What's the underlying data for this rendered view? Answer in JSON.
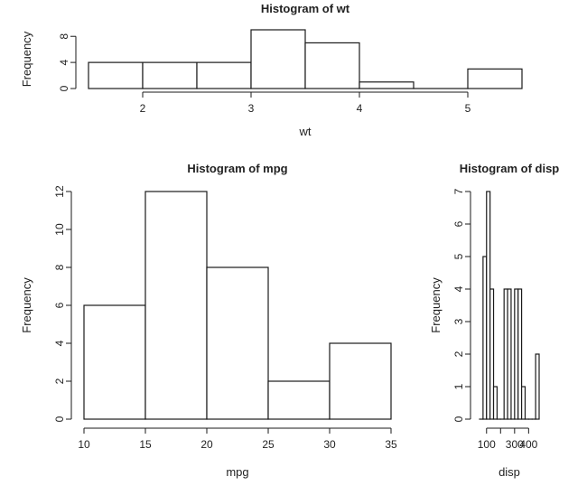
{
  "chart_data": [
    {
      "type": "bar",
      "title": "Histogram of wt",
      "xlabel": "wt",
      "ylabel": "Frequency",
      "bins": [
        [
          1.5,
          2.0
        ],
        [
          2.0,
          2.5
        ],
        [
          2.5,
          3.0
        ],
        [
          3.0,
          3.5
        ],
        [
          3.5,
          4.0
        ],
        [
          4.0,
          4.5
        ],
        [
          4.5,
          5.0
        ],
        [
          5.0,
          5.5
        ]
      ],
      "values": [
        4,
        4,
        4,
        9,
        7,
        1,
        0,
        3
      ],
      "xticks": [
        2,
        3,
        4,
        5
      ],
      "yticks": [
        0,
        4,
        8
      ],
      "xlim": [
        1.5,
        5.5
      ],
      "ylim": [
        0,
        9
      ]
    },
    {
      "type": "bar",
      "title": "Histogram of mpg",
      "xlabel": "mpg",
      "ylabel": "Frequency",
      "bins": [
        [
          10,
          15
        ],
        [
          15,
          20
        ],
        [
          20,
          25
        ],
        [
          25,
          30
        ],
        [
          30,
          35
        ]
      ],
      "values": [
        6,
        12,
        8,
        2,
        4
      ],
      "xticks": [
        10,
        15,
        20,
        25,
        30,
        35
      ],
      "yticks": [
        0,
        2,
        4,
        6,
        8,
        10,
        12
      ],
      "xlim": [
        10,
        35
      ],
      "ylim": [
        0,
        12
      ]
    },
    {
      "type": "bar",
      "title": "Histogram of disp",
      "xlabel": "disp",
      "ylabel": "Frequency",
      "bins": [
        [
          50,
          75
        ],
        [
          75,
          100
        ],
        [
          100,
          125
        ],
        [
          125,
          150
        ],
        [
          150,
          175
        ],
        [
          175,
          200
        ],
        [
          200,
          225
        ],
        [
          225,
          250
        ],
        [
          250,
          275
        ],
        [
          275,
          300
        ],
        [
          300,
          325
        ],
        [
          325,
          350
        ],
        [
          350,
          375
        ],
        [
          375,
          400
        ],
        [
          400,
          425
        ],
        [
          425,
          450
        ],
        [
          450,
          475
        ]
      ],
      "values": [
        0,
        5,
        7,
        4,
        1,
        0,
        0,
        4,
        4,
        0,
        4,
        4,
        1,
        0,
        0,
        0,
        2
      ],
      "xticks": [
        100,
        300
      ],
      "xtick_labels": [
        "100",
        "300"
      ],
      "xtick_minor": [
        200,
        400
      ],
      "xtick_minor_labels": [
        "",
        "400"
      ],
      "yticks": [
        0,
        1,
        2,
        3,
        4,
        5,
        6,
        7
      ],
      "xlim": [
        50,
        475
      ],
      "ylim": [
        0,
        7
      ]
    }
  ]
}
